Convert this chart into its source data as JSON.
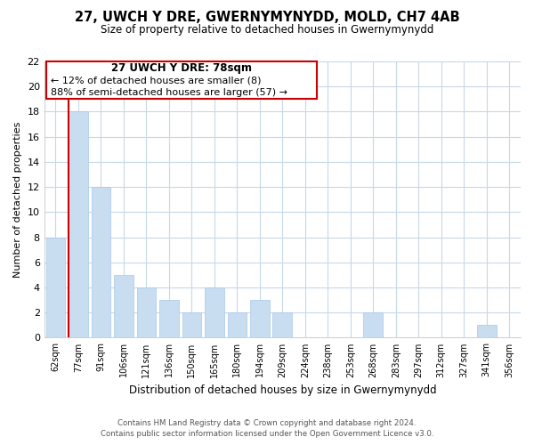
{
  "title": "27, UWCH Y DRE, GWERNYMYNYDD, MOLD, CH7 4AB",
  "subtitle": "Size of property relative to detached houses in Gwernymynydd",
  "xlabel": "Distribution of detached houses by size in Gwernymynydd",
  "ylabel": "Number of detached properties",
  "bin_labels": [
    "62sqm",
    "77sqm",
    "91sqm",
    "106sqm",
    "121sqm",
    "136sqm",
    "150sqm",
    "165sqm",
    "180sqm",
    "194sqm",
    "209sqm",
    "224sqm",
    "238sqm",
    "253sqm",
    "268sqm",
    "283sqm",
    "297sqm",
    "312sqm",
    "327sqm",
    "341sqm",
    "356sqm"
  ],
  "bar_heights": [
    8,
    18,
    12,
    5,
    4,
    3,
    2,
    4,
    2,
    3,
    2,
    0,
    0,
    0,
    2,
    0,
    0,
    0,
    0,
    1,
    0
  ],
  "bar_color": "#c8ddf0",
  "bar_edge_color": "#a8c8e8",
  "marker_line_color": "#cc0000",
  "ylim": [
    0,
    22
  ],
  "yticks": [
    0,
    2,
    4,
    6,
    8,
    10,
    12,
    14,
    16,
    18,
    20,
    22
  ],
  "annotation_title": "27 UWCH Y DRE: 78sqm",
  "annotation_line1": "← 12% of detached houses are smaller (8)",
  "annotation_line2": "88% of semi-detached houses are larger (57) →",
  "footer_line1": "Contains HM Land Registry data © Crown copyright and database right 2024.",
  "footer_line2": "Contains public sector information licensed under the Open Government Licence v3.0.",
  "background_color": "#ffffff",
  "grid_color": "#c8d8e8"
}
